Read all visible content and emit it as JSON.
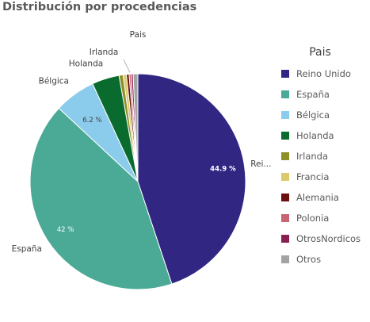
{
  "title": "Distribución por procedencias",
  "chart_data": {
    "type": "pie",
    "title": "Distribución por procedencias",
    "legend_title": "Pais",
    "legend_position": "right",
    "top_label": "Pais",
    "slices": [
      {
        "name": "Reino Unido",
        "value": 44.9,
        "color": "#312783",
        "label": "Rei...",
        "value_label": "44.9 %"
      },
      {
        "name": "España",
        "value": 42.0,
        "color": "#4aaa96",
        "label": "España",
        "value_label": "42 %"
      },
      {
        "name": "Bélgica",
        "value": 6.2,
        "color": "#8bcbeb",
        "label": "Bélgica",
        "value_label": "6.2 %"
      },
      {
        "name": "Holanda",
        "value": 4.1,
        "color": "#0a6b2e",
        "label": "Holanda",
        "value_label": ""
      },
      {
        "name": "Irlanda",
        "value": 0.6,
        "color": "#8f8f28",
        "label": "Irlanda",
        "value_label": ""
      },
      {
        "name": "Francia",
        "value": 0.5,
        "color": "#dccb6a",
        "label": "",
        "value_label": ""
      },
      {
        "name": "Alemania",
        "value": 0.4,
        "color": "#6b0f0f",
        "label": "",
        "value_label": ""
      },
      {
        "name": "Polonia",
        "value": 0.3,
        "color": "#c86575",
        "label": "",
        "value_label": ""
      },
      {
        "name": "OtrosNordicos",
        "value": 0.3,
        "color": "#8a2052",
        "label": "",
        "value_label": ""
      },
      {
        "name": "Otros",
        "value": 0.7,
        "color": "#a3a3a3",
        "label": "",
        "value_label": ""
      }
    ]
  }
}
